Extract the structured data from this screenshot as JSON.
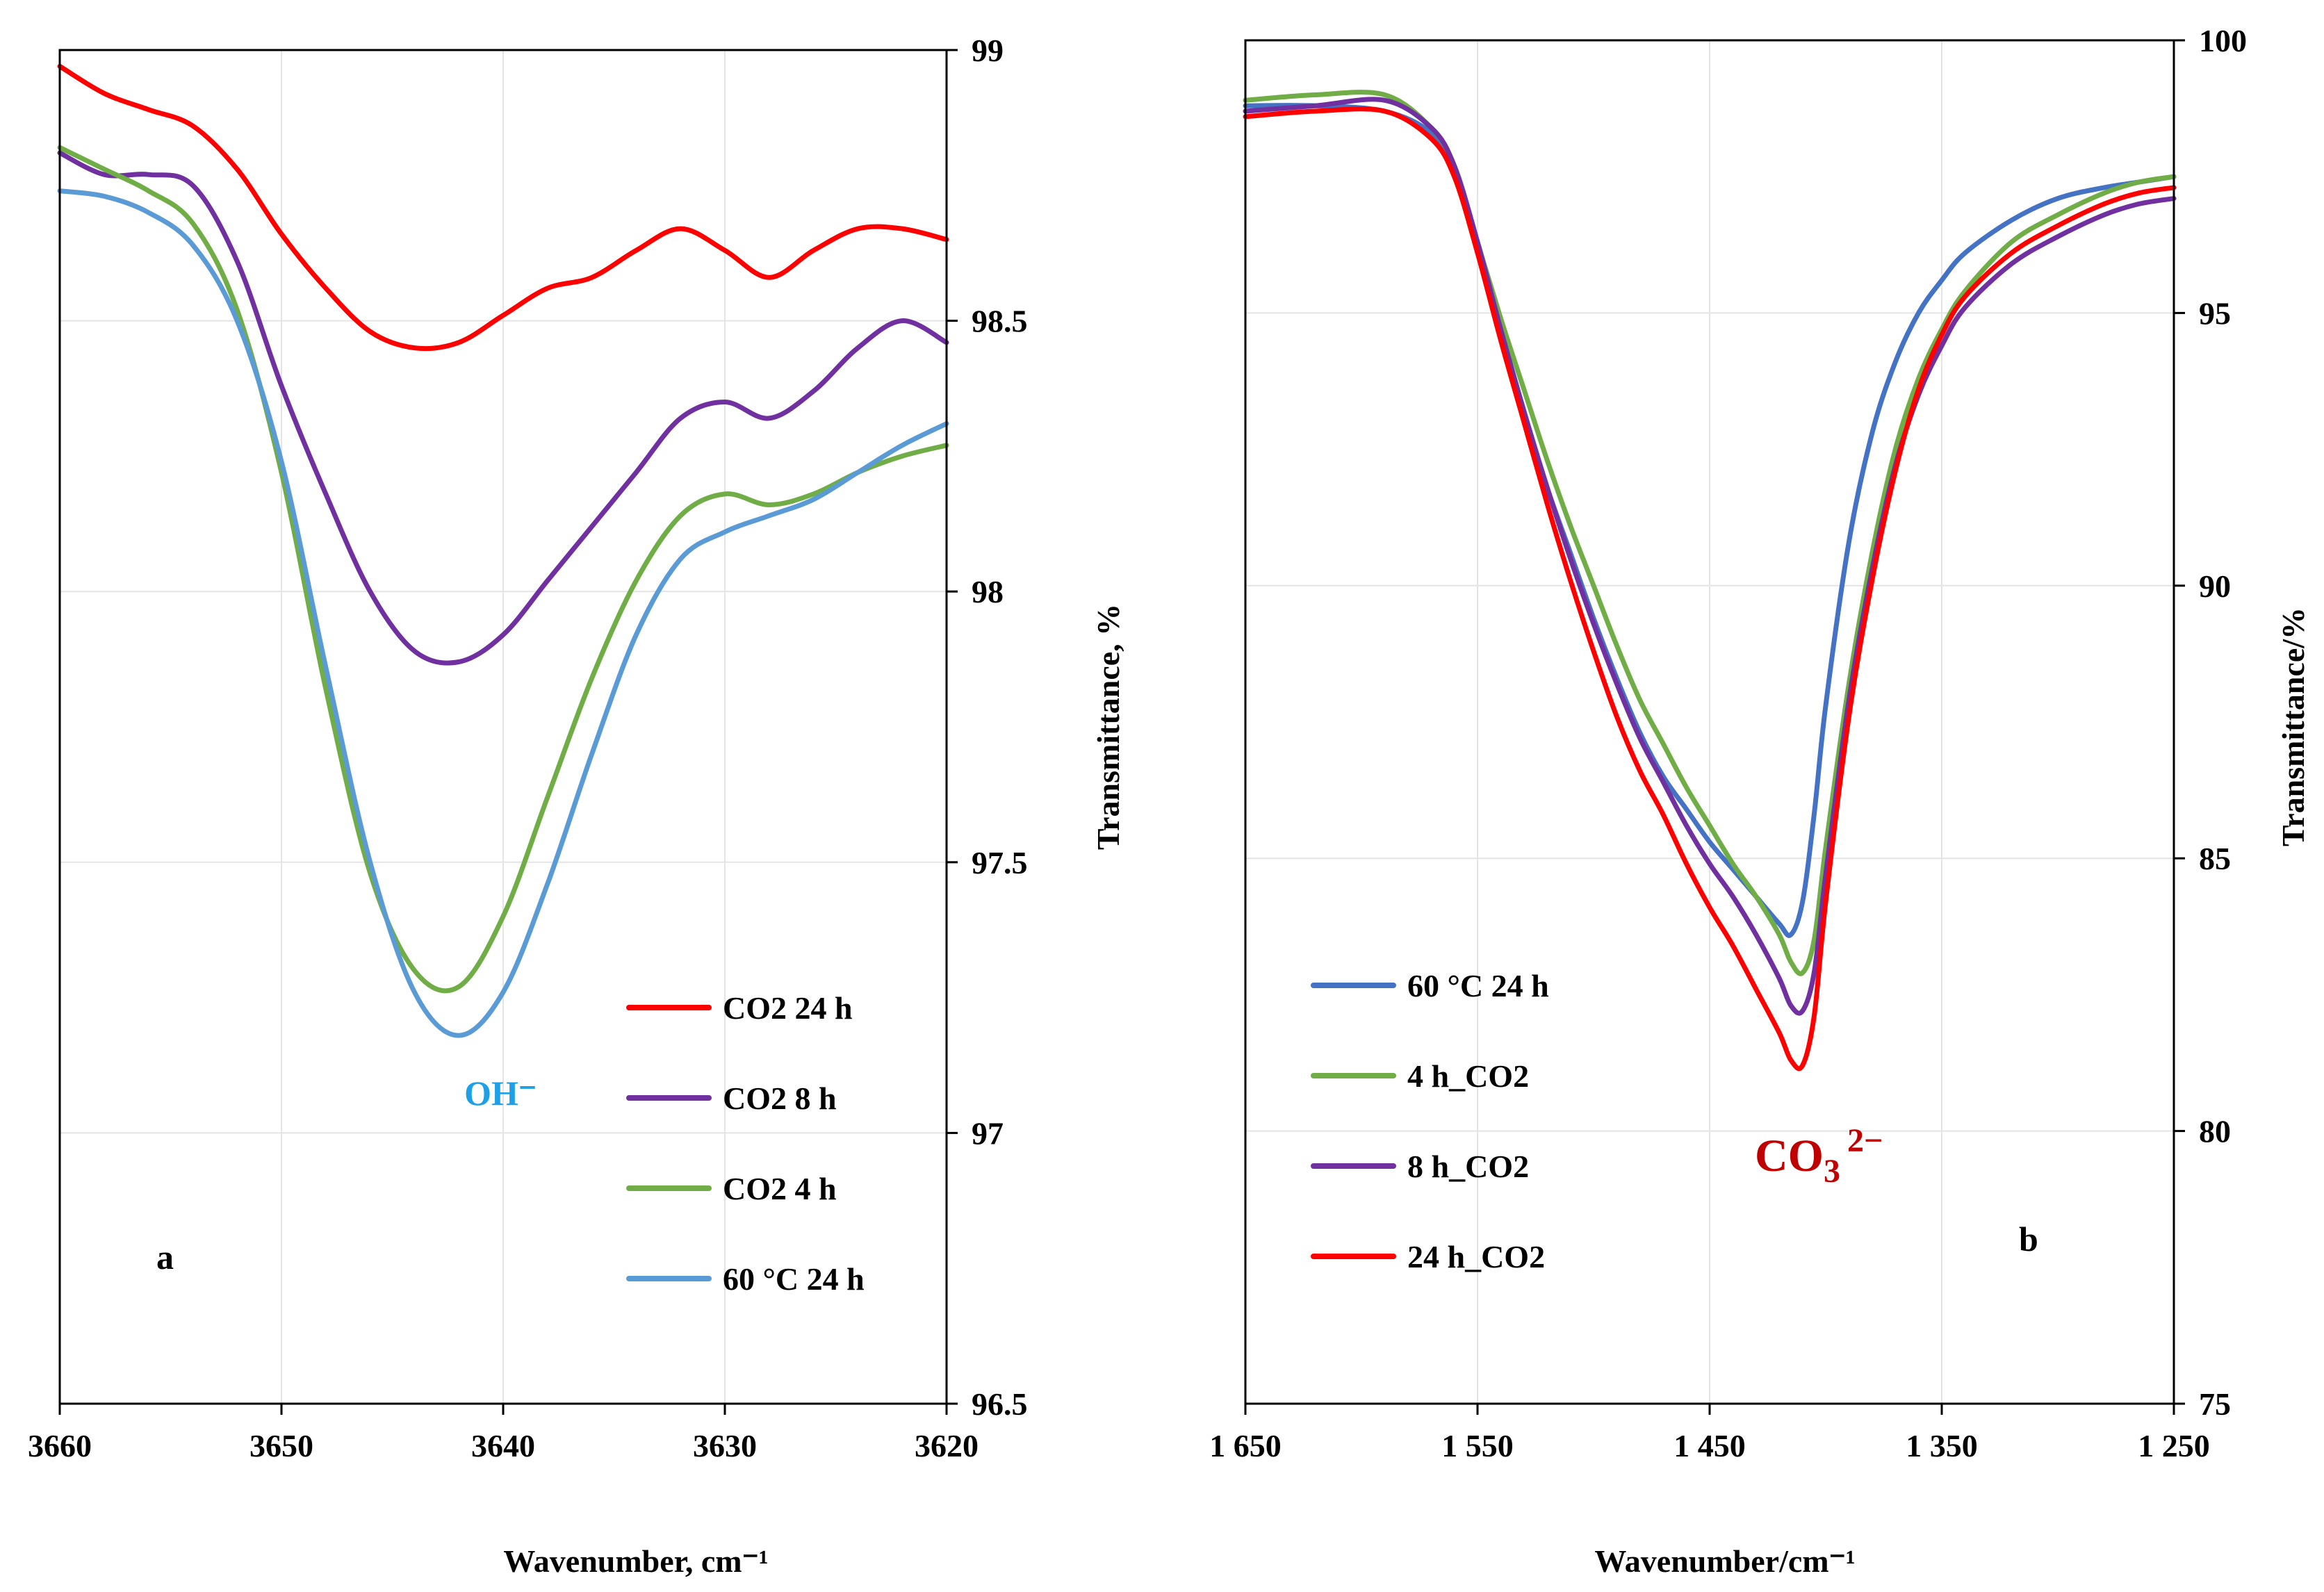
{
  "chart_data": [
    {
      "type": "line",
      "panel_label": "a",
      "xlabel": "Wavenumber, cm⁻¹",
      "ylabel": "Transmittance, %",
      "xlim": [
        3660,
        3620
      ],
      "ylim": [
        96.5,
        99
      ],
      "x_ticks": [
        3660,
        3650,
        3640,
        3630,
        3620
      ],
      "x_tick_labels": [
        "3660",
        "3650",
        "3640",
        "3630",
        "3620"
      ],
      "y_ticks": [
        96.5,
        97,
        97.5,
        98,
        98.5,
        99
      ],
      "y_tick_labels": [
        "96.5",
        "97",
        "97.5",
        "98",
        "98.5",
        "99"
      ],
      "y_axis_side": "right",
      "grid": true,
      "legend_position": "bottom-right",
      "annotation": "OH⁻",
      "series": [
        {
          "name": "CO2 24 h",
          "color": "#ff0000",
          "x": [
            3660,
            3658,
            3656,
            3654,
            3652,
            3650,
            3648,
            3646,
            3644,
            3642,
            3640,
            3638,
            3636,
            3634,
            3632,
            3630,
            3628,
            3626,
            3624,
            3622,
            3620
          ],
          "y": [
            98.97,
            98.92,
            98.89,
            98.86,
            98.78,
            98.66,
            98.56,
            98.48,
            98.45,
            98.46,
            98.51,
            98.56,
            98.58,
            98.63,
            98.67,
            98.63,
            98.58,
            98.63,
            98.67,
            98.67,
            98.65
          ]
        },
        {
          "name": "CO2 8 h",
          "color": "#7030a0",
          "x": [
            3660,
            3658,
            3656,
            3654,
            3652,
            3650,
            3648,
            3646,
            3644,
            3642,
            3640,
            3638,
            3636,
            3634,
            3632,
            3630,
            3628,
            3626,
            3624,
            3622,
            3620
          ],
          "y": [
            98.81,
            98.77,
            98.77,
            98.75,
            98.61,
            98.38,
            98.18,
            98.0,
            97.89,
            97.87,
            97.92,
            98.02,
            98.12,
            98.22,
            98.32,
            98.35,
            98.32,
            98.37,
            98.45,
            98.5,
            98.46
          ]
        },
        {
          "name": "CO2 4 h",
          "color": "#70ad47",
          "x": [
            3660,
            3658,
            3656,
            3654,
            3652,
            3650,
            3648,
            3646,
            3644,
            3642,
            3640,
            3638,
            3636,
            3634,
            3632,
            3630,
            3628,
            3626,
            3624,
            3622,
            3620
          ],
          "y": [
            98.82,
            98.78,
            98.74,
            98.68,
            98.52,
            98.22,
            97.82,
            97.48,
            97.3,
            97.27,
            97.4,
            97.62,
            97.84,
            98.02,
            98.14,
            98.18,
            98.16,
            98.18,
            98.22,
            98.25,
            98.27
          ]
        },
        {
          "name": "60 °C 24 h",
          "color": "#5b9bd5",
          "x": [
            3660,
            3658,
            3656,
            3654,
            3652,
            3650,
            3648,
            3646,
            3644,
            3642,
            3640,
            3638,
            3636,
            3634,
            3632,
            3630,
            3628,
            3626,
            3624,
            3622,
            3620
          ],
          "y": [
            98.74,
            98.73,
            98.7,
            98.64,
            98.5,
            98.24,
            97.86,
            97.5,
            97.26,
            97.18,
            97.26,
            97.46,
            97.7,
            97.92,
            98.06,
            98.11,
            98.14,
            98.17,
            98.22,
            98.27,
            98.31
          ]
        }
      ]
    },
    {
      "type": "line",
      "panel_label": "b",
      "xlabel": "Wavenumber/cm⁻¹",
      "ylabel": "Transmittance/%",
      "xlim": [
        1650,
        1250
      ],
      "ylim": [
        75,
        100
      ],
      "x_ticks": [
        1650,
        1550,
        1450,
        1350,
        1250
      ],
      "x_tick_labels": [
        "1 650",
        "1 550",
        "1 450",
        "1 350",
        "1 250"
      ],
      "y_ticks": [
        75,
        80,
        85,
        90,
        95,
        100
      ],
      "y_tick_labels": [
        "75",
        "80",
        "85",
        "90",
        "95",
        "100"
      ],
      "y_axis_side": "right",
      "grid": true,
      "legend_position": "bottom-left",
      "annotation": "CO",
      "annotation_sub": "3",
      "annotation_sup": "2−",
      "series": [
        {
          "name": "60 °C 24 h",
          "color": "#4472c4",
          "x": [
            1650,
            1620,
            1590,
            1570,
            1560,
            1550,
            1540,
            1530,
            1520,
            1510,
            1500,
            1490,
            1480,
            1470,
            1460,
            1450,
            1440,
            1430,
            1420,
            1415,
            1410,
            1405,
            1400,
            1390,
            1380,
            1370,
            1360,
            1350,
            1340,
            1320,
            1300,
            1280,
            1265,
            1250
          ],
          "y": [
            98.8,
            98.8,
            98.7,
            98.3,
            97.6,
            96.3,
            94.7,
            93.2,
            91.8,
            90.6,
            89.4,
            88.3,
            87.3,
            86.5,
            85.9,
            85.3,
            84.8,
            84.3,
            83.8,
            83.6,
            84.2,
            85.8,
            87.8,
            90.8,
            92.8,
            94.1,
            95.0,
            95.6,
            96.1,
            96.7,
            97.1,
            97.3,
            97.4,
            97.5
          ]
        },
        {
          "name": "4 h_CO2",
          "color": "#70ad47",
          "x": [
            1650,
            1620,
            1590,
            1570,
            1560,
            1550,
            1540,
            1530,
            1520,
            1510,
            1500,
            1490,
            1480,
            1470,
            1460,
            1450,
            1440,
            1430,
            1420,
            1415,
            1410,
            1405,
            1400,
            1390,
            1380,
            1370,
            1360,
            1350,
            1340,
            1320,
            1300,
            1280,
            1265,
            1250
          ],
          "y": [
            98.9,
            99.0,
            99.0,
            98.4,
            97.7,
            96.3,
            94.9,
            93.6,
            92.3,
            91.1,
            90.0,
            88.9,
            87.9,
            87.1,
            86.3,
            85.6,
            84.9,
            84.3,
            83.6,
            83.1,
            82.9,
            83.5,
            85.2,
            88.2,
            90.6,
            92.5,
            93.8,
            94.7,
            95.4,
            96.3,
            96.8,
            97.2,
            97.4,
            97.5
          ]
        },
        {
          "name": "8 h_CO2",
          "color": "#7030a0",
          "x": [
            1650,
            1620,
            1590,
            1570,
            1560,
            1550,
            1540,
            1530,
            1520,
            1510,
            1500,
            1490,
            1480,
            1470,
            1460,
            1450,
            1440,
            1430,
            1420,
            1415,
            1410,
            1405,
            1400,
            1390,
            1380,
            1370,
            1360,
            1350,
            1340,
            1320,
            1300,
            1280,
            1265,
            1250
          ],
          "y": [
            98.7,
            98.8,
            98.9,
            98.4,
            97.7,
            96.3,
            94.7,
            93.2,
            91.8,
            90.5,
            89.3,
            88.2,
            87.2,
            86.4,
            85.6,
            84.9,
            84.3,
            83.6,
            82.8,
            82.3,
            82.2,
            82.9,
            84.7,
            87.9,
            90.3,
            92.2,
            93.5,
            94.4,
            95.1,
            95.9,
            96.4,
            96.8,
            97.0,
            97.1
          ]
        },
        {
          "name": "24 h_CO2",
          "color": "#ff0000",
          "x": [
            1650,
            1620,
            1590,
            1570,
            1560,
            1550,
            1540,
            1530,
            1520,
            1510,
            1500,
            1490,
            1480,
            1470,
            1460,
            1450,
            1440,
            1430,
            1420,
            1415,
            1410,
            1405,
            1400,
            1390,
            1380,
            1370,
            1360,
            1350,
            1340,
            1320,
            1300,
            1280,
            1265,
            1250
          ],
          "y": [
            98.6,
            98.7,
            98.7,
            98.2,
            97.5,
            96.1,
            94.5,
            93.0,
            91.5,
            90.1,
            88.8,
            87.6,
            86.6,
            85.8,
            84.9,
            84.1,
            83.4,
            82.6,
            81.8,
            81.3,
            81.2,
            82.1,
            84.2,
            87.6,
            90.1,
            92.1,
            93.6,
            94.6,
            95.3,
            96.1,
            96.6,
            97.0,
            97.2,
            97.3
          ]
        }
      ]
    }
  ]
}
